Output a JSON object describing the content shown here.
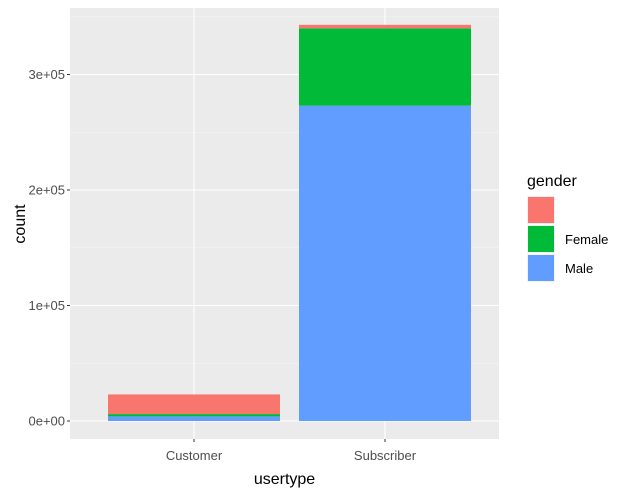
{
  "chart_data": {
    "type": "bar",
    "stacked": true,
    "xlabel": "usertype",
    "ylabel": "count",
    "categories": [
      "Customer",
      "Subscriber"
    ],
    "ylim": [
      0,
      355000
    ],
    "y_ticks": [
      0,
      100000,
      200000,
      300000
    ],
    "y_tick_labels": [
      "0e+00",
      "1e+05",
      "2e+05",
      "3e+05"
    ],
    "grid": true,
    "legend": {
      "title": "gender",
      "position": "right",
      "entries": [
        "",
        "Female",
        "Male"
      ]
    },
    "series": [
      {
        "name": "Male",
        "color": "#619CFF",
        "values": [
          4000,
          273000
        ]
      },
      {
        "name": "Female",
        "color": "#00BA38",
        "values": [
          2000,
          67000
        ]
      },
      {
        "name": "",
        "color": "#F8766D",
        "values": [
          17000,
          3000
        ]
      }
    ],
    "colors": {
      "panel_background": "#EBEBEB",
      "grid_major": "#FFFFFF",
      "grid_minor": "#F5F5F5"
    }
  }
}
